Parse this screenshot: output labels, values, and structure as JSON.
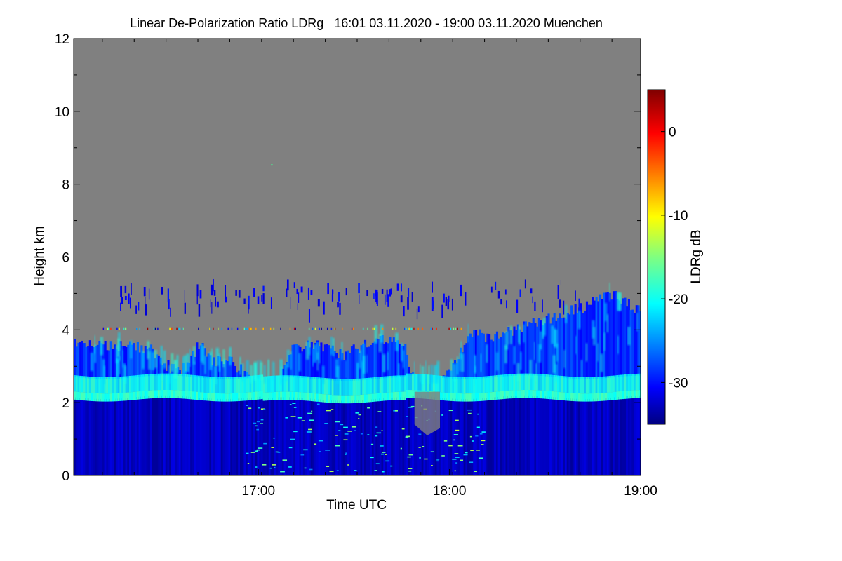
{
  "chart_data": {
    "type": "heatmap",
    "title": "Linear De-Polarization Ratio LDRg   16:01 03.11.2020 - 19:00 03.11.2020 Muenchen",
    "xlabel": "Time UTC",
    "ylabel": "Height km",
    "x_range": [
      "16:01",
      "19:00"
    ],
    "ylim": [
      0,
      12
    ],
    "x_ticks": [
      {
        "label": "17:00",
        "value_min": 1019
      },
      {
        "label": "18:00",
        "value_min": 1079
      },
      {
        "label": "19:00",
        "value_min": 1139
      }
    ],
    "x_minor_step_min": 10,
    "x_start_min": 961,
    "y_ticks": [
      0,
      2,
      4,
      6,
      8,
      10,
      12
    ],
    "background_color": "#808080",
    "colorbar": {
      "label": "LDRg dB",
      "range": [
        -35,
        5
      ],
      "ticks": [
        0,
        -10,
        -20,
        -30
      ],
      "colormap": "jet"
    },
    "features": [
      {
        "name": "melting layer band",
        "height_km": 2.2,
        "ldr_db": -20
      },
      {
        "name": "ice cloud top",
        "height_km_range": [
          3.5,
          5.5
        ],
        "ldr_db": -30
      },
      {
        "name": "rain below melting layer",
        "height_km_range": [
          0,
          2
        ],
        "ldr_db": -34
      }
    ]
  }
}
